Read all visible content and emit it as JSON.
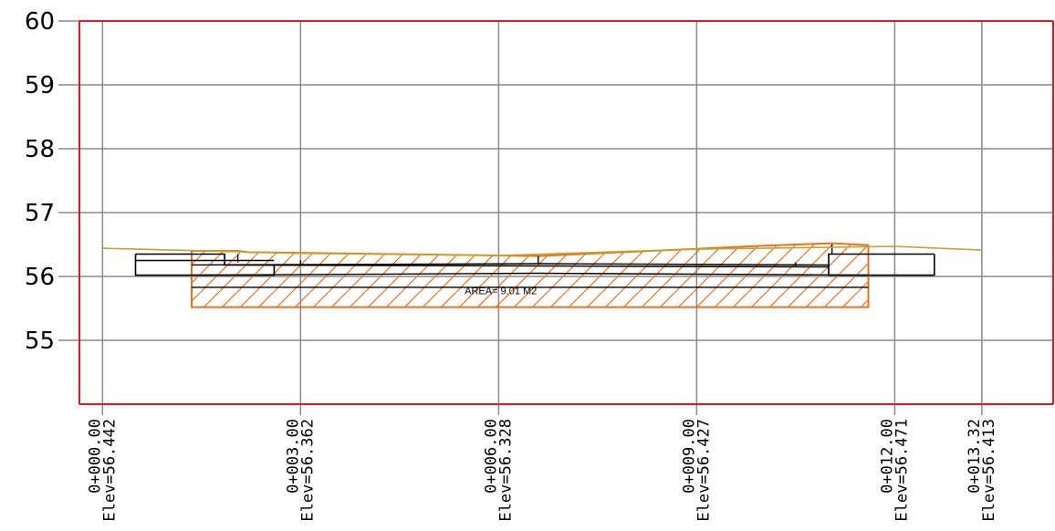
{
  "chart_data": {
    "type": "cross-section",
    "y_axis": {
      "ticks": [
        "60",
        "59",
        "58",
        "57",
        "56",
        "55"
      ],
      "tick_values": [
        60,
        59,
        58,
        57,
        56,
        55
      ],
      "range": [
        54.0,
        60.0
      ]
    },
    "x_axis": {
      "range": [
        -0.35,
        14.4
      ],
      "stations": [
        {
          "offset": 0.0,
          "station": "0+000.00",
          "elev": "Elev=56.442"
        },
        {
          "offset": 3.0,
          "station": "0+003.00",
          "elev": "Elev=56.362"
        },
        {
          "offset": 6.0,
          "station": "0+006.00",
          "elev": "Elev=56.328"
        },
        {
          "offset": 9.0,
          "station": "0+009.00",
          "elev": "Elev=56.427"
        },
        {
          "offset": 12.0,
          "station": "0+012.00",
          "elev": "Elev=56.471"
        },
        {
          "offset": 13.32,
          "station": "0+013.32",
          "elev": "Elev=56.413"
        }
      ]
    },
    "ground_line": [
      [
        0.0,
        56.442
      ],
      [
        3.0,
        56.362
      ],
      [
        6.0,
        56.328
      ],
      [
        9.0,
        56.427
      ],
      [
        12.0,
        56.471
      ],
      [
        13.32,
        56.413
      ]
    ],
    "cut_area": {
      "label": "AREA= 9.01 M2",
      "polygon": [
        [
          1.35,
          56.4
        ],
        [
          2.05,
          56.4
        ],
        [
          2.2,
          56.38
        ],
        [
          6.6,
          56.32
        ],
        [
          8.3,
          56.4
        ],
        [
          10.0,
          56.48
        ],
        [
          11.05,
          56.52
        ],
        [
          11.6,
          56.49
        ],
        [
          11.6,
          55.52
        ],
        [
          1.35,
          55.52
        ]
      ]
    },
    "pavement": {
      "top": [
        [
          0.5,
          56.35
        ],
        [
          1.85,
          56.35
        ],
        [
          1.85,
          56.18
        ],
        [
          11.0,
          56.15
        ],
        [
          11.0,
          56.35
        ],
        [
          12.6,
          56.35
        ]
      ],
      "layer_lines": [
        [
          [
            0.5,
            56.25
          ],
          [
            2.6,
            56.25
          ]
        ],
        [
          [
            1.35,
            56.18
          ],
          [
            6.6,
            56.2
          ],
          [
            11.0,
            56.18
          ]
        ],
        [
          [
            1.35,
            56.02
          ],
          [
            6.6,
            56.05
          ],
          [
            11.6,
            56.02
          ]
        ],
        [
          [
            1.35,
            55.83
          ],
          [
            11.6,
            55.83
          ]
        ]
      ],
      "curb_left": [
        [
          0.5,
          56.35
        ],
        [
          0.5,
          56.02
        ],
        [
          2.6,
          56.02
        ],
        [
          2.6,
          56.18
        ]
      ],
      "curb_right": [
        [
          11.0,
          56.18
        ],
        [
          11.0,
          56.02
        ],
        [
          12.6,
          56.02
        ],
        [
          12.6,
          56.35
        ]
      ]
    },
    "colors": {
      "frame": "#e8151b",
      "grid": "#8a8a8a",
      "ground": "#c9a22a",
      "cut": "#e8721f",
      "structure": "#000000"
    }
  }
}
